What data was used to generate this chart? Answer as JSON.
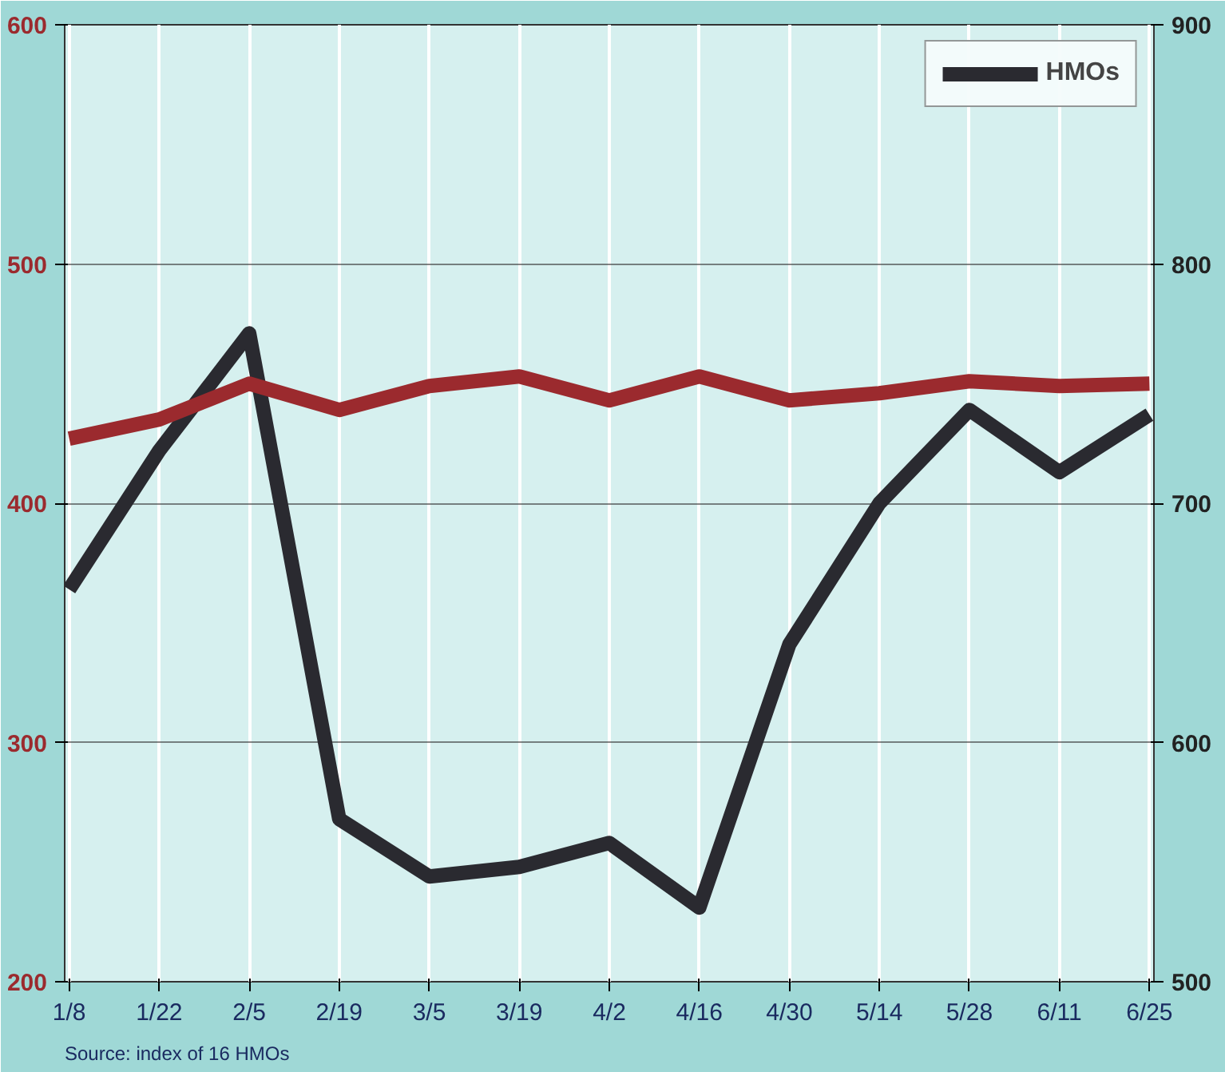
{
  "chart_data": {
    "type": "line",
    "categories": [
      "1/8",
      "1/22",
      "2/5",
      "2/19",
      "3/5",
      "3/19",
      "4/2",
      "4/16",
      "4/30",
      "5/14",
      "5/28",
      "6/11",
      "6/25"
    ],
    "series": [
      {
        "name": "HMOs",
        "color": "#2a2a30",
        "axis": "y2",
        "values": [
          664,
          722,
          771,
          568,
          544,
          548,
          558,
          531,
          641,
          700,
          739,
          713,
          737
        ]
      },
      {
        "color": "#9b2a2e",
        "values": [
          427,
          435,
          450,
          439,
          449,
          453,
          443,
          453,
          443,
          446,
          451,
          449,
          450
        ]
      }
    ],
    "ylim": [
      200,
      600
    ],
    "yticks": [
      200,
      300,
      400,
      500,
      600
    ],
    "y2lim": [
      500,
      900
    ],
    "y2ticks": [
      500,
      600,
      700,
      800,
      900
    ],
    "grid": true,
    "legend": "top right",
    "marker": "none",
    "line_style": "solid",
    "annotations": [
      "Source: index of 16 HMOs"
    ]
  }
}
